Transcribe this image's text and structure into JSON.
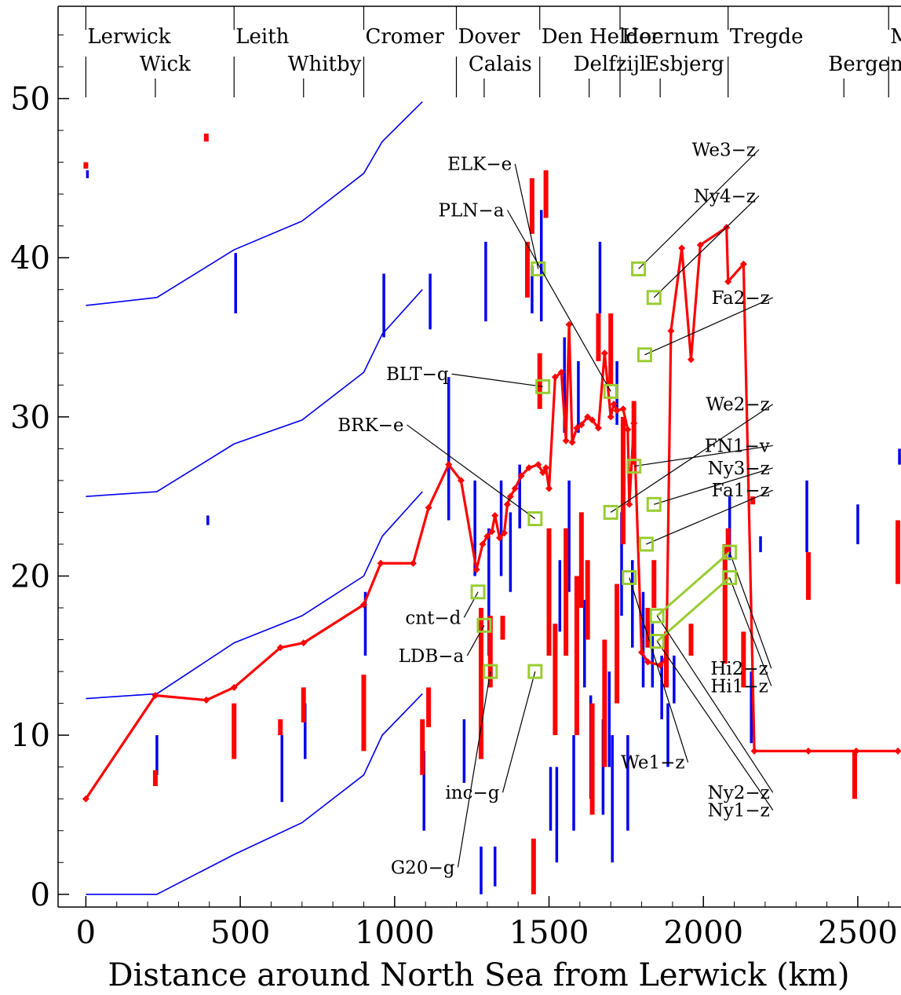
{
  "chart_data": {
    "type": "line",
    "title": "",
    "xlabel": "Distance around North Sea from Lerwick (km)",
    "ylabel": "",
    "xlim": [
      -90,
      2640
    ],
    "ylim": [
      -0.8,
      55.8
    ],
    "x_ticks": [
      0,
      500,
      1000,
      1500,
      2000,
      2500
    ],
    "y_ticks": [
      0,
      10,
      20,
      30,
      40,
      50
    ],
    "grid": false,
    "colors": {
      "main_line": "#ff0000",
      "bands": "#0000ee",
      "bars_red": "#ff0000",
      "bars_blue": "#0000ee",
      "markers": "#99cc33"
    },
    "ports_top": [
      {
        "name": "Lerwick",
        "x": 0
      },
      {
        "name": "Leith",
        "x": 480
      },
      {
        "name": "Cromer",
        "x": 900
      },
      {
        "name": "Dover",
        "x": 1200
      },
      {
        "name": "Den Helder",
        "x": 1470
      },
      {
        "name": "Hoernum",
        "x": 1730
      },
      {
        "name": "Tregde",
        "x": 2080
      },
      {
        "name": "Maloy",
        "x": 2600
      }
    ],
    "ports_bottom": [
      {
        "name": "Wick",
        "x": 225
      },
      {
        "name": "Whitby",
        "x": 705
      },
      {
        "name": "Calais",
        "x": 1290
      },
      {
        "name": "Delfzijl",
        "x": 1630
      },
      {
        "name": "Esbjerg",
        "x": 1860
      },
      {
        "name": "Bergen",
        "x": 2455
      }
    ],
    "port_ticks_top": [
      0,
      480,
      900,
      1200,
      1470,
      1730,
      2080,
      2600
    ],
    "port_ticks_bottom": [
      225,
      705,
      1290,
      1630,
      1860,
      2455
    ],
    "series": [
      {
        "type": "line",
        "x": [
          0,
          225,
          390,
          480,
          630,
          705,
          900,
          955,
          1060,
          1110,
          1175,
          1215,
          1265,
          1285,
          1300,
          1315,
          1325,
          1340,
          1355,
          1365,
          1375,
          1390,
          1410,
          1435,
          1465,
          1480,
          1490,
          1500,
          1520,
          1540,
          1555,
          1565,
          1575,
          1590,
          1605,
          1625,
          1640,
          1660,
          1680,
          1700,
          1710,
          1720,
          1740,
          1755,
          1760,
          1775,
          1800,
          1820,
          1860,
          1880,
          1895,
          1930,
          1960,
          1990,
          2075,
          2080,
          2130,
          2165,
          2340,
          2495,
          2630
        ],
        "y": [
          6.0,
          12.5,
          12.2,
          13.0,
          15.5,
          15.8,
          18.2,
          20.8,
          20.8,
          24.3,
          27.0,
          26.0,
          20.4,
          22.0,
          22.5,
          22.8,
          23.8,
          22.4,
          22.7,
          24.5,
          25.0,
          25.5,
          26.3,
          26.8,
          27.0,
          26.5,
          26.8,
          25.5,
          32.5,
          32.8,
          28.5,
          35.8,
          28.4,
          29.3,
          29.5,
          30.0,
          29.8,
          29.3,
          34.0,
          30.0,
          30.8,
          30.4,
          30.5,
          29.2,
          24.5,
          29.6,
          15.2,
          14.6,
          14.4,
          14.8,
          35.4,
          40.6,
          33.6,
          40.8,
          41.9,
          38.5,
          39.6,
          9.0,
          9.0,
          9.0,
          9.0
        ]
      }
    ],
    "blue_bands": [
      {
        "x": [
          0,
          230,
          480,
          700,
          900,
          960,
          1090
        ],
        "y": [
          0.0,
          0.0,
          2.5,
          4.5,
          7.5,
          10.0,
          12.6
        ]
      },
      {
        "x": [
          0,
          230,
          480,
          700,
          900,
          960,
          1090
        ],
        "y": [
          12.3,
          12.6,
          15.8,
          17.5,
          20.0,
          22.5,
          25.3
        ]
      },
      {
        "x": [
          0,
          230,
          480,
          700,
          900,
          960,
          1090
        ],
        "y": [
          25.0,
          25.3,
          28.3,
          29.8,
          32.8,
          35.2,
          38.0
        ]
      },
      {
        "x": [
          0,
          230,
          480,
          700,
          900,
          960,
          1090
        ],
        "y": [
          37.0,
          37.5,
          40.5,
          42.3,
          45.3,
          47.3,
          49.8
        ]
      }
    ],
    "red_bars": [
      {
        "x": 0,
        "y0": 45.6,
        "y1": 46.0
      },
      {
        "x": 225,
        "y0": 6.8,
        "y1": 7.8
      },
      {
        "x": 390,
        "y0": 47.3,
        "y1": 47.8
      },
      {
        "x": 480,
        "y0": 8.5,
        "y1": 12.0
      },
      {
        "x": 630,
        "y0": 10.0,
        "y1": 11.0
      },
      {
        "x": 705,
        "y0": 10.8,
        "y1": 13.0
      },
      {
        "x": 900,
        "y0": 9.0,
        "y1": 13.8
      },
      {
        "x": 1090,
        "y0": 7.5,
        "y1": 11.0
      },
      {
        "x": 1110,
        "y0": 10.5,
        "y1": 13.0
      },
      {
        "x": 1280,
        "y0": 8.5,
        "y1": 18.0
      },
      {
        "x": 1310,
        "y0": 13.0,
        "y1": 17.5
      },
      {
        "x": 1350,
        "y0": 16.0,
        "y1": 17.5
      },
      {
        "x": 1430,
        "y0": 37.5,
        "y1": 41.0
      },
      {
        "x": 1445,
        "y0": 41.5,
        "y1": 45.0
      },
      {
        "x": 1450,
        "y0": 0.0,
        "y1": 3.5
      },
      {
        "x": 1470,
        "y0": 30.5,
        "y1": 34.0
      },
      {
        "x": 1490,
        "y0": 42.5,
        "y1": 45.5
      },
      {
        "x": 1500,
        "y0": 15.0,
        "y1": 23.0
      },
      {
        "x": 1520,
        "y0": 10.0,
        "y1": 17.0
      },
      {
        "x": 1555,
        "y0": 15.0,
        "y1": 23.0
      },
      {
        "x": 1590,
        "y0": 10.0,
        "y1": 20.0
      },
      {
        "x": 1605,
        "y0": 18.0,
        "y1": 24.0
      },
      {
        "x": 1625,
        "y0": 16.0,
        "y1": 21.0
      },
      {
        "x": 1640,
        "y0": 5.0,
        "y1": 12.0
      },
      {
        "x": 1660,
        "y0": 33.5,
        "y1": 36.5
      },
      {
        "x": 1680,
        "y0": 8.0,
        "y1": 16.0
      },
      {
        "x": 1700,
        "y0": 32.0,
        "y1": 36.5
      },
      {
        "x": 1720,
        "y0": 12.0,
        "y1": 19.5
      },
      {
        "x": 1740,
        "y0": 22.0,
        "y1": 30.0
      },
      {
        "x": 1775,
        "y0": 27.0,
        "y1": 31.0
      },
      {
        "x": 1820,
        "y0": 15.5,
        "y1": 18.0
      },
      {
        "x": 1840,
        "y0": 18.0,
        "y1": 21.0
      },
      {
        "x": 1880,
        "y0": 13.0,
        "y1": 16.5
      },
      {
        "x": 1960,
        "y0": 15.0,
        "y1": 17.0
      },
      {
        "x": 2070,
        "y0": 14.5,
        "y1": 22.0
      },
      {
        "x": 2080,
        "y0": 21.5,
        "y1": 23.0
      },
      {
        "x": 2130,
        "y0": 13.0,
        "y1": 16.5
      },
      {
        "x": 2160,
        "y0": 24.5,
        "y1": 25.0
      },
      {
        "x": 2340,
        "y0": 18.5,
        "y1": 21.5
      },
      {
        "x": 2490,
        "y0": 6.0,
        "y1": 9.0
      },
      {
        "x": 2630,
        "y0": 19.5,
        "y1": 23.5
      }
    ],
    "blue_bars": [
      {
        "x": 0,
        "y0": 45.0,
        "y1": 45.5
      },
      {
        "x": 225,
        "y0": 7.5,
        "y1": 10.0
      },
      {
        "x": 390,
        "y0": 23.2,
        "y1": 23.8
      },
      {
        "x": 480,
        "y0": 36.5,
        "y1": 40.3
      },
      {
        "x": 630,
        "y0": 5.8,
        "y1": 10.0
      },
      {
        "x": 705,
        "y0": 8.5,
        "y1": 12.0
      },
      {
        "x": 900,
        "y0": 15.0,
        "y1": 19.0
      },
      {
        "x": 960,
        "y0": 35.0,
        "y1": 39.0
      },
      {
        "x": 1090,
        "y0": 4.0,
        "y1": 9.0
      },
      {
        "x": 1110,
        "y0": 35.5,
        "y1": 39.0
      },
      {
        "x": 1170,
        "y0": 23.5,
        "y1": 32.5
      },
      {
        "x": 1220,
        "y0": 7.0,
        "y1": 11.0
      },
      {
        "x": 1255,
        "y0": 20.0,
        "y1": 26.0
      },
      {
        "x": 1275,
        "y0": 0.0,
        "y1": 3.0
      },
      {
        "x": 1290,
        "y0": 36.0,
        "y1": 41.0
      },
      {
        "x": 1300,
        "y0": 15.0,
        "y1": 23.0
      },
      {
        "x": 1320,
        "y0": 0.5,
        "y1": 3.0
      },
      {
        "x": 1340,
        "y0": 20.0,
        "y1": 26.0
      },
      {
        "x": 1370,
        "y0": 19.0,
        "y1": 24.0
      },
      {
        "x": 1400,
        "y0": 23.0,
        "y1": 27.0
      },
      {
        "x": 1440,
        "y0": 36.5,
        "y1": 39.5
      },
      {
        "x": 1470,
        "y0": 36.0,
        "y1": 43.0
      },
      {
        "x": 1500,
        "y0": 4.0,
        "y1": 8.0
      },
      {
        "x": 1520,
        "y0": 2.0,
        "y1": 8.0
      },
      {
        "x": 1530,
        "y0": 16.5,
        "y1": 21.0
      },
      {
        "x": 1545,
        "y0": 29.0,
        "y1": 35.0
      },
      {
        "x": 1560,
        "y0": 19.0,
        "y1": 26.0
      },
      {
        "x": 1575,
        "y0": 4.0,
        "y1": 10.0
      },
      {
        "x": 1590,
        "y0": 29.0,
        "y1": 33.5
      },
      {
        "x": 1610,
        "y0": 13.0,
        "y1": 18.5
      },
      {
        "x": 1630,
        "y0": 6.0,
        "y1": 12.5
      },
      {
        "x": 1660,
        "y0": 36.5,
        "y1": 41.0
      },
      {
        "x": 1670,
        "y0": 5.0,
        "y1": 11.0
      },
      {
        "x": 1690,
        "y0": 8.0,
        "y1": 14.0
      },
      {
        "x": 1700,
        "y0": 2.0,
        "y1": 10.0
      },
      {
        "x": 1715,
        "y0": 29.5,
        "y1": 33.5
      },
      {
        "x": 1730,
        "y0": 17.5,
        "y1": 24.0
      },
      {
        "x": 1750,
        "y0": 4.0,
        "y1": 10.0
      },
      {
        "x": 1765,
        "y0": 15.5,
        "y1": 21.0
      },
      {
        "x": 1800,
        "y0": 13.0,
        "y1": 19.0
      },
      {
        "x": 1830,
        "y0": 13.0,
        "y1": 17.0
      },
      {
        "x": 1860,
        "y0": 11.0,
        "y1": 15.0
      },
      {
        "x": 1880,
        "y0": 8.0,
        "y1": 12.0
      },
      {
        "x": 1900,
        "y0": 12.0,
        "y1": 15.0
      },
      {
        "x": 2080,
        "y0": 21.0,
        "y1": 25.0
      },
      {
        "x": 2150,
        "y0": 9.5,
        "y1": 14.0
      },
      {
        "x": 2180,
        "y0": 21.5,
        "y1": 22.5
      },
      {
        "x": 2330,
        "y0": 21.5,
        "y1": 26.0
      },
      {
        "x": 2495,
        "y0": 22.0,
        "y1": 24.5
      },
      {
        "x": 2630,
        "y0": 27.0,
        "y1": 28.0
      }
    ],
    "labels": [
      {
        "text": "ELK−e",
        "mx": 1465,
        "my": 39.3,
        "tx": 1390,
        "ty": 45.5,
        "anchor": "end"
      },
      {
        "text": "PLN−a",
        "mx": 1700,
        "my": 31.6,
        "tx": 1365,
        "ty": 42.6,
        "anchor": "end"
      },
      {
        "text": "BLT−q",
        "mx": 1480,
        "my": 31.9,
        "tx": 1185,
        "ty": 32.3,
        "anchor": "end"
      },
      {
        "text": "BRK−e",
        "mx": 1455,
        "my": 23.6,
        "tx": 1040,
        "ty": 29.1,
        "anchor": "end"
      },
      {
        "text": "cnt−d",
        "mx": 1270,
        "my": 19.0,
        "tx": 1225,
        "ty": 17.0,
        "anchor": "end"
      },
      {
        "text": "LDB−a",
        "mx": 1290,
        "my": 16.9,
        "tx": 1235,
        "ty": 14.6,
        "anchor": "end"
      },
      {
        "text": "inc−g",
        "mx": 1455,
        "my": 14.0,
        "tx": 1350,
        "ty": 6.0,
        "anchor": "end"
      },
      {
        "text": "G20−g",
        "mx": 1310,
        "my": 14.0,
        "tx": 1205,
        "ty": 1.3,
        "anchor": "end"
      },
      {
        "text": "We3−z",
        "mx": 1790,
        "my": 39.3,
        "tx": 2180,
        "ty": 46.4,
        "anchor": "end"
      },
      {
        "text": "Ny4−z",
        "mx": 1840,
        "my": 37.5,
        "tx": 2180,
        "ty": 43.5,
        "anchor": "end"
      },
      {
        "text": "Fa2−z",
        "mx": 1810,
        "my": 33.9,
        "tx": 2225,
        "ty": 37.1,
        "anchor": "end"
      },
      {
        "text": "We2−z",
        "mx": 1700,
        "my": 24.0,
        "tx": 2225,
        "ty": 30.4,
        "anchor": "end"
      },
      {
        "text": "FN1−v",
        "mx": 1775,
        "my": 26.9,
        "tx": 2225,
        "ty": 27.8,
        "anchor": "end"
      },
      {
        "text": "Ny3−z",
        "mx": 1840,
        "my": 24.5,
        "tx": 2225,
        "ty": 26.4,
        "anchor": "end"
      },
      {
        "text": "Fa1−z",
        "mx": 1815,
        "my": 22.0,
        "tx": 2225,
        "ty": 25.0,
        "anchor": "end"
      },
      {
        "text": "Hi2−z",
        "mx": 2085,
        "my": 21.5,
        "tx": 2220,
        "ty": 13.8,
        "anchor": "end"
      },
      {
        "text": "Hi1−z",
        "mx": 2085,
        "my": 19.9,
        "tx": 2220,
        "ty": 12.7,
        "anchor": "end"
      },
      {
        "text": "We1−z",
        "mx": 1760,
        "my": 19.9,
        "tx": 1950,
        "ty": 7.9,
        "anchor": "end"
      },
      {
        "text": "Ny2−z",
        "mx": 1850,
        "my": 17.5,
        "tx": 2225,
        "ty": 6.0,
        "anchor": "end"
      },
      {
        "text": "Ny1−z",
        "mx": 1850,
        "my": 15.9,
        "tx": 2225,
        "ty": 4.9,
        "anchor": "end"
      }
    ],
    "marker_links": [
      {
        "x0": 1850,
        "y0": 17.5,
        "x1": 2085,
        "y1": 21.5
      },
      {
        "x0": 1850,
        "y0": 15.9,
        "x1": 2085,
        "y1": 19.9
      }
    ]
  }
}
